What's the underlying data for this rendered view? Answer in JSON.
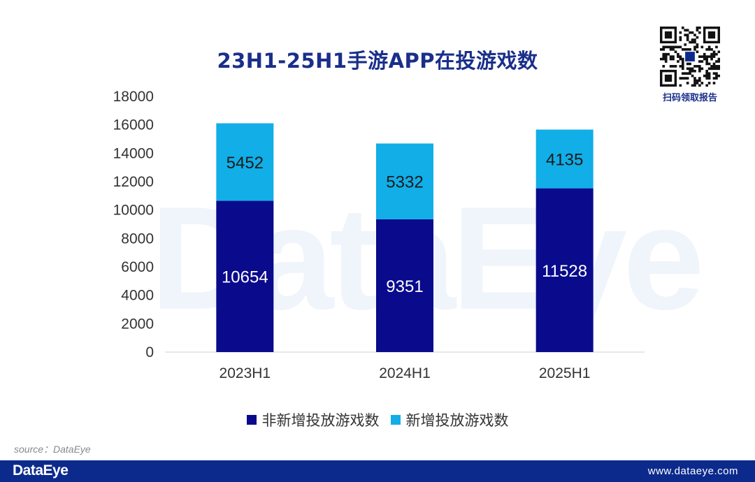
{
  "watermark": "DataEye",
  "qr": {
    "label": "扫码领取报告"
  },
  "source": "source：DataEye",
  "footer": {
    "logo": "DataEye",
    "url": "www.dataeye.com"
  },
  "legend": [
    {
      "label": "非新增投放游戏数",
      "color": "#0a0a8c"
    },
    {
      "label": "新增投放游戏数",
      "color": "#11aee8"
    }
  ],
  "chart_data": {
    "type": "bar",
    "stacked": true,
    "title": "23H1-25H1手游APP在投游戏数",
    "categories": [
      "2023H1",
      "2024H1",
      "2025H1"
    ],
    "series": [
      {
        "name": "非新增投放游戏数",
        "values": [
          10654,
          9351,
          11528
        ],
        "color": "#0a0a8c"
      },
      {
        "name": "新增投放游戏数",
        "values": [
          5452,
          5332,
          4135
        ],
        "color": "#11aee8"
      }
    ],
    "ylim": [
      0,
      18000
    ],
    "yticks": [
      0,
      2000,
      4000,
      6000,
      8000,
      10000,
      12000,
      14000,
      16000,
      18000
    ],
    "grid": false,
    "legend_position": "bottom"
  }
}
